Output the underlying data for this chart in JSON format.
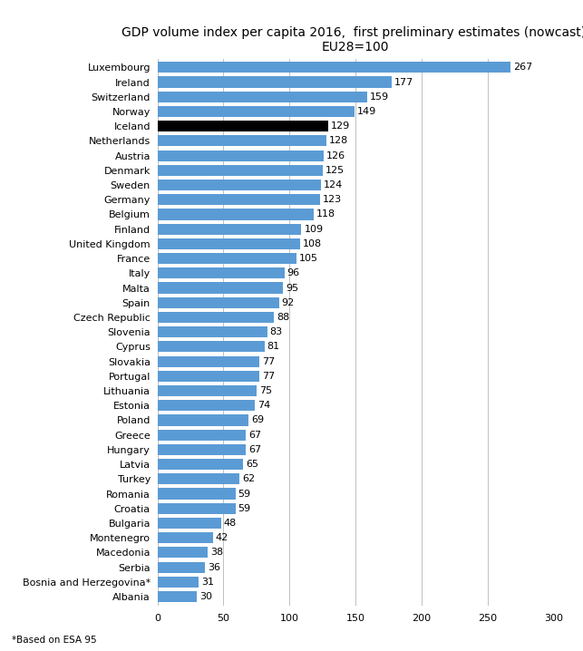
{
  "title": "GDP volume index per capita 2016,  first preliminary estimates (nowcast),\nEU28=100",
  "footnote": "*Based on ESA 95",
  "categories": [
    "Albania",
    "Bosnia and Herzegovina*",
    "Serbia",
    "Macedonia",
    "Montenegro",
    "Bulgaria",
    "Croatia",
    "Romania",
    "Turkey",
    "Latvia",
    "Hungary",
    "Greece",
    "Poland",
    "Estonia",
    "Lithuania",
    "Portugal",
    "Slovakia",
    "Cyprus",
    "Slovenia",
    "Czech Republic",
    "Spain",
    "Malta",
    "Italy",
    "France",
    "United Kingdom",
    "Finland",
    "Belgium",
    "Germany",
    "Sweden",
    "Denmark",
    "Austria",
    "Netherlands",
    "Iceland",
    "Norway",
    "Switzerland",
    "Ireland",
    "Luxembourg"
  ],
  "values": [
    30,
    31,
    36,
    38,
    42,
    48,
    59,
    59,
    62,
    65,
    67,
    67,
    69,
    74,
    75,
    77,
    77,
    81,
    83,
    88,
    92,
    95,
    96,
    105,
    108,
    109,
    118,
    123,
    124,
    125,
    126,
    128,
    129,
    149,
    159,
    177,
    267
  ],
  "bar_colors": [
    "#5B9BD5",
    "#5B9BD5",
    "#5B9BD5",
    "#5B9BD5",
    "#5B9BD5",
    "#5B9BD5",
    "#5B9BD5",
    "#5B9BD5",
    "#5B9BD5",
    "#5B9BD5",
    "#5B9BD5",
    "#5B9BD5",
    "#5B9BD5",
    "#5B9BD5",
    "#5B9BD5",
    "#5B9BD5",
    "#5B9BD5",
    "#5B9BD5",
    "#5B9BD5",
    "#5B9BD5",
    "#5B9BD5",
    "#5B9BD5",
    "#5B9BD5",
    "#5B9BD5",
    "#5B9BD5",
    "#5B9BD5",
    "#5B9BD5",
    "#5B9BD5",
    "#5B9BD5",
    "#5B9BD5",
    "#5B9BD5",
    "#5B9BD5",
    "#000000",
    "#5B9BD5",
    "#5B9BD5",
    "#5B9BD5",
    "#5B9BD5"
  ],
  "xlim": [
    0,
    300
  ],
  "xticks": [
    0,
    50,
    100,
    150,
    200,
    250,
    300
  ],
  "title_fontsize": 10,
  "label_fontsize": 8,
  "value_fontsize": 8,
  "footnote_fontsize": 7.5,
  "background_color": "#FFFFFF",
  "grid_color": "#C0C0C0"
}
